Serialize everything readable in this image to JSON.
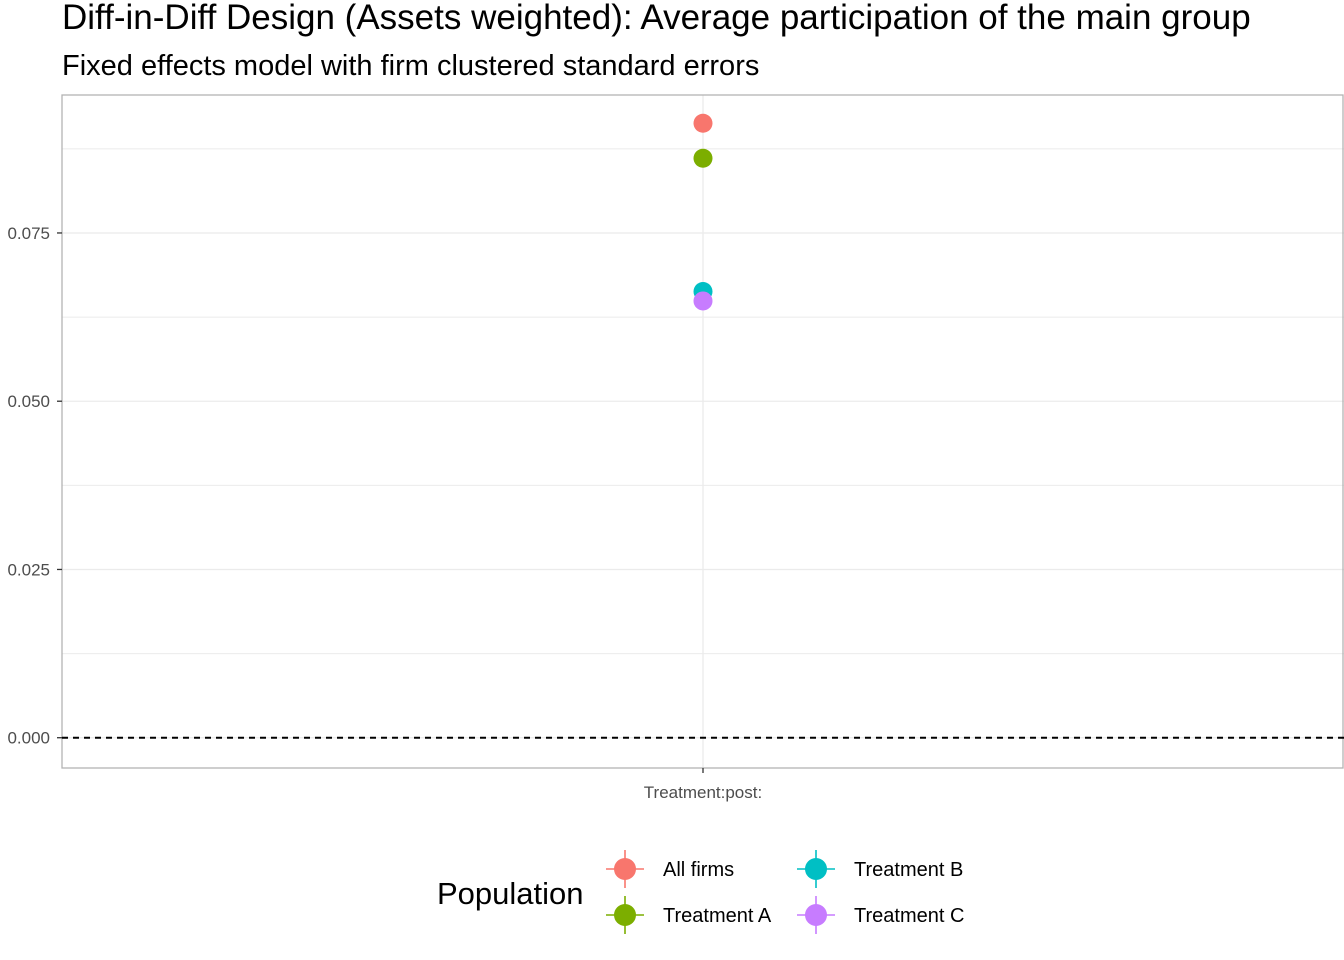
{
  "chart_data": {
    "type": "scatter",
    "title": "Diff-in-Diff Design (Assets weighted): Average participation of the main group",
    "subtitle": "Fixed effects model with firm clustered standard errors",
    "xlabel": "",
    "ylabel": "",
    "categories": [
      "Treatment:post:"
    ],
    "ylim": [
      -0.0045,
      0.0955
    ],
    "yticks": [
      0.0,
      0.025,
      0.05,
      0.075
    ],
    "ytick_labels": [
      "0.000",
      "0.025",
      "0.050",
      "0.075"
    ],
    "reference_line": {
      "y": 0.0,
      "style": "dashed"
    },
    "grid": true,
    "series": [
      {
        "name": "All firms",
        "color": "#F8766D",
        "values": [
          0.0913
        ]
      },
      {
        "name": "Treatment A",
        "color": "#7CAE00",
        "values": [
          0.0861
        ]
      },
      {
        "name": "Treatment B",
        "color": "#00BFC4",
        "values": [
          0.0663
        ]
      },
      {
        "name": "Treatment C",
        "color": "#C77CFF",
        "values": [
          0.0649
        ]
      }
    ],
    "legend": {
      "title": "Population",
      "position": "bottom"
    }
  }
}
